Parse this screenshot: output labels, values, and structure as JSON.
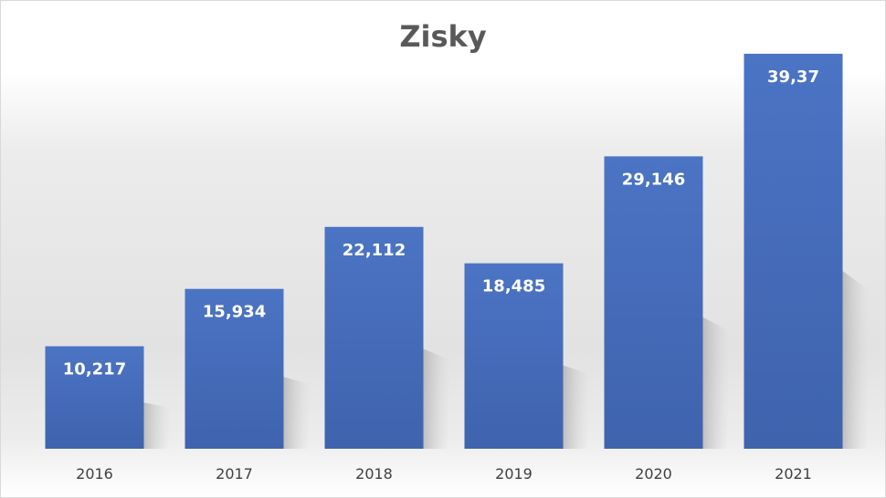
{
  "chart_data": {
    "type": "bar",
    "title": "Zisky",
    "categories": [
      "2016",
      "2017",
      "2018",
      "2019",
      "2020",
      "2021"
    ],
    "values": [
      10.217,
      15.934,
      22.112,
      18.485,
      29.146,
      39.37
    ],
    "data_labels": [
      "10,217",
      "15,934",
      "22,112",
      "18,485",
      "29,146",
      "39,37"
    ],
    "xlabel": "",
    "ylabel": "",
    "ylim": [
      0,
      40
    ],
    "grid": false,
    "legend": "none",
    "bar_color": "#4a6fbf",
    "label_color": "#ffffff"
  }
}
